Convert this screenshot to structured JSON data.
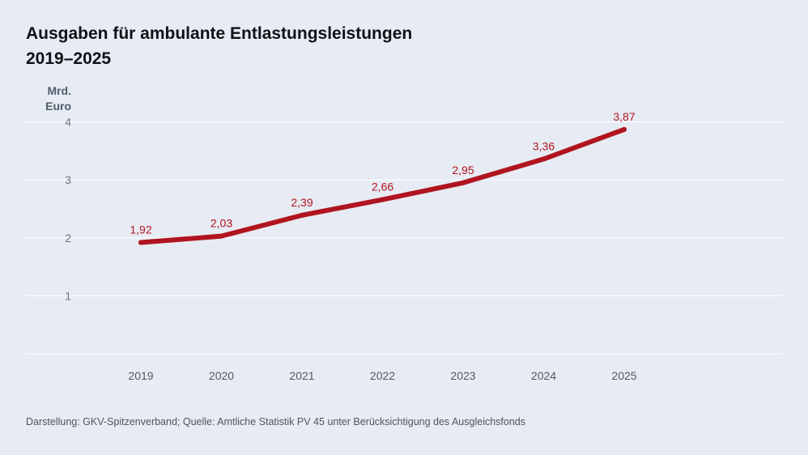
{
  "title_line1": "Ausgaben für ambulante Entlastungsleistungen",
  "title_line2": "2019–2025",
  "unit_line1": "Mrd.",
  "unit_line2": "Euro",
  "source": "Darstellung: GKV-Spitzenverband; Quelle: Amtliche Statistik PV 45 unter Berücksichtigung des Ausgleichsfonds",
  "colors": {
    "line": "#b0151f",
    "label": "#b0151f",
    "grid": "#ffffff",
    "tick": "#6b7480",
    "background": "#e7ebf3"
  },
  "chart_data": {
    "type": "line",
    "x": [
      "2019",
      "2020",
      "2021",
      "2022",
      "2023",
      "2024",
      "2025"
    ],
    "values": [
      1.92,
      2.03,
      2.39,
      2.66,
      2.95,
      3.36,
      3.87
    ],
    "data_labels": [
      "1,92",
      "2,03",
      "2,39",
      "2,66",
      "2,95",
      "3,36",
      "3,87"
    ],
    "yticks": [
      1,
      2,
      3,
      4
    ],
    "ylim": [
      0,
      4
    ],
    "grid": true,
    "legend": "none"
  }
}
